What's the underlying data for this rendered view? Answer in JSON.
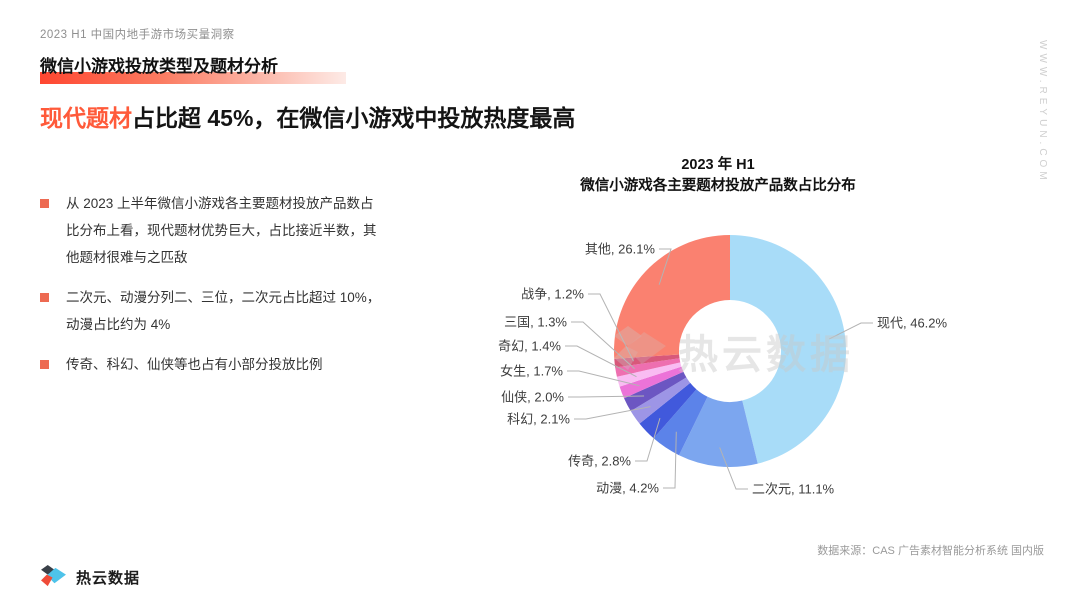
{
  "page": {
    "eyebrow": "2023 H1 中国内地手游市场买量洞察",
    "section_title": "微信小游戏投放类型及题材分析",
    "headline_highlight": "现代题材",
    "headline_rest": "占比超 45%，在微信小游戏中投放热度最高"
  },
  "bullets": [
    "从 2023 上半年微信小游戏各主要题材投放产品数占比分布上看，现代题材优势巨大，占比接近半数，其他题材很难与之匹敌",
    "二次元、动漫分列二、三位，二次元占比超过 10%，动漫占比约为 4%",
    "传奇、科幻、仙侠等也占有小部分投放比例"
  ],
  "chart_data": {
    "type": "pie",
    "donut": true,
    "start_angle": "top",
    "direction": "clockwise",
    "inner_radius_ratio": 0.44,
    "title_line1": "2023 年 H1",
    "title_line2": "微信小游戏各主要题材投放产品数占比分布",
    "categories": [
      "现代",
      "二次元",
      "动漫",
      "传奇",
      "科幻",
      "仙侠",
      "女生",
      "奇幻",
      "三国",
      "战争",
      "其他"
    ],
    "values": [
      46.2,
      11.1,
      4.2,
      2.8,
      2.1,
      2.0,
      1.7,
      1.4,
      1.3,
      1.2,
      26.1
    ],
    "labels": [
      "现代, 46.2%",
      "二次元, 11.1%",
      "动漫, 4.2%",
      "传奇, 2.8%",
      "科幻, 2.1%",
      "仙侠, 2.0%",
      "女生, 1.7%",
      "奇幻, 1.4%",
      "三国, 1.3%",
      "战争, 1.2%",
      "其他, 26.1%"
    ],
    "colors": [
      "#A8DCF8",
      "#7CA6EF",
      "#5C83E9",
      "#4159DC",
      "#9D95E6",
      "#6C56C2",
      "#EC73D8",
      "#F9BCF2",
      "#EE6FB0",
      "#D8587A",
      "#FA8170"
    ],
    "leader_line_color": "#b3b3b3",
    "legend": "none"
  },
  "watermark": {
    "brand": "热云数据",
    "site": "WWW.REYUN.COM"
  },
  "footer": {
    "brand": "热云数据",
    "source": "数据来源：CAS 广告素材智能分析系统 国内版",
    "logo_colors": {
      "dark": "#3a4048",
      "cyan": "#4ec3ea",
      "red": "#ef4b38"
    }
  }
}
